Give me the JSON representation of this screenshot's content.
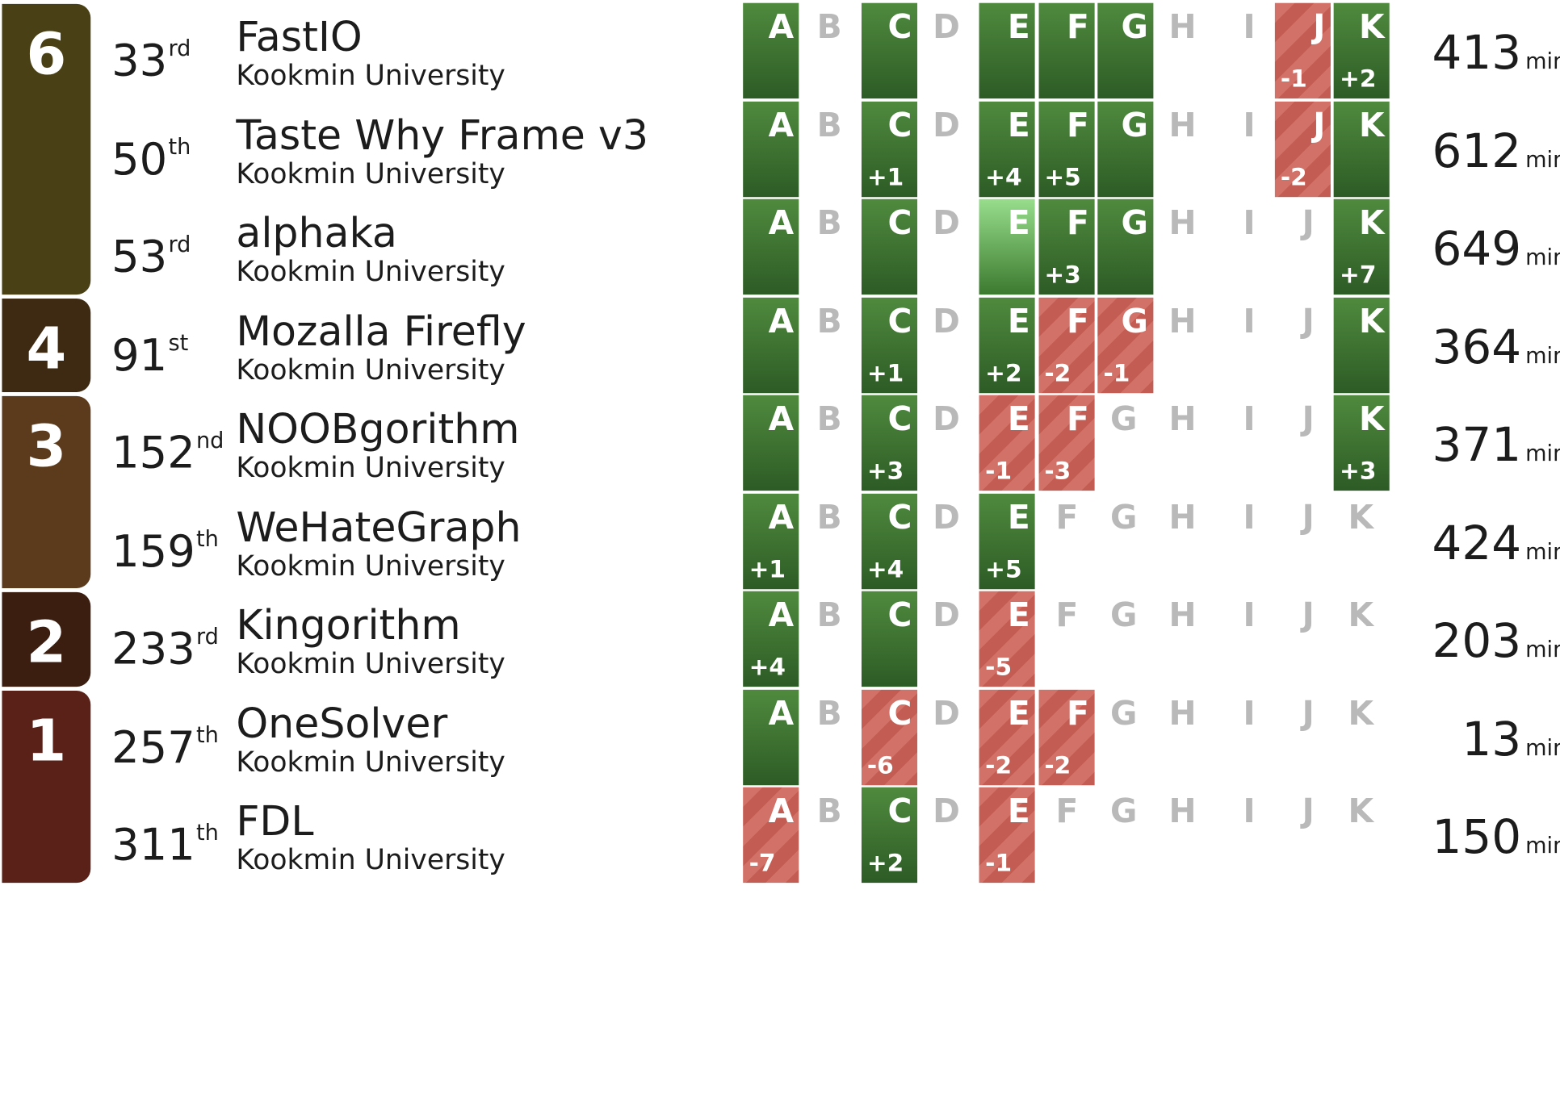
{
  "colors": {
    "group_6": "#4a4016",
    "group_4": "#3e2a12",
    "group_3": "#5c3a1c",
    "group_2": "#3b1e10",
    "group_1": "#5a2119",
    "solved": "#2f5e27",
    "first_solve": "#8ed483",
    "failed": "#d06d63",
    "unattempted_letter": "#b9b9b9"
  },
  "groups": [
    {
      "count": "6",
      "color": "#4a4016",
      "rows": 3
    },
    {
      "count": "4",
      "color": "#3e2a12",
      "rows": 1
    },
    {
      "count": "3",
      "color": "#5c3a1c",
      "rows": 2
    },
    {
      "count": "2",
      "color": "#3b1e10",
      "rows": 1
    },
    {
      "count": "1",
      "color": "#5a2119",
      "rows": 2
    }
  ],
  "penalty_unit": "min.",
  "teams": [
    {
      "rank": "33",
      "suffix": "rd",
      "name": "FastIO",
      "university": "Kookmin University",
      "penalty": "413",
      "problems": [
        {
          "letter": "A",
          "status": "solved",
          "attempts": ""
        },
        {
          "letter": "B",
          "status": "none",
          "attempts": ""
        },
        {
          "letter": "C",
          "status": "solved",
          "attempts": ""
        },
        {
          "letter": "D",
          "status": "none",
          "attempts": ""
        },
        {
          "letter": "E",
          "status": "solved",
          "attempts": ""
        },
        {
          "letter": "F",
          "status": "solved",
          "attempts": ""
        },
        {
          "letter": "G",
          "status": "solved",
          "attempts": ""
        },
        {
          "letter": "H",
          "status": "none",
          "attempts": ""
        },
        {
          "letter": "I",
          "status": "none",
          "attempts": ""
        },
        {
          "letter": "J",
          "status": "failed",
          "attempts": "-1"
        },
        {
          "letter": "K",
          "status": "solved",
          "attempts": "+2"
        }
      ]
    },
    {
      "rank": "50",
      "suffix": "th",
      "name": "Taste Why Frame v3",
      "university": "Kookmin University",
      "penalty": "612",
      "problems": [
        {
          "letter": "A",
          "status": "solved",
          "attempts": ""
        },
        {
          "letter": "B",
          "status": "none",
          "attempts": ""
        },
        {
          "letter": "C",
          "status": "solved",
          "attempts": "+1"
        },
        {
          "letter": "D",
          "status": "none",
          "attempts": ""
        },
        {
          "letter": "E",
          "status": "solved",
          "attempts": "+4"
        },
        {
          "letter": "F",
          "status": "solved",
          "attempts": "+5"
        },
        {
          "letter": "G",
          "status": "solved",
          "attempts": ""
        },
        {
          "letter": "H",
          "status": "none",
          "attempts": ""
        },
        {
          "letter": "I",
          "status": "none",
          "attempts": ""
        },
        {
          "letter": "J",
          "status": "failed",
          "attempts": "-2"
        },
        {
          "letter": "K",
          "status": "solved",
          "attempts": ""
        }
      ]
    },
    {
      "rank": "53",
      "suffix": "rd",
      "name": "alphaka",
      "university": "Kookmin University",
      "penalty": "649",
      "problems": [
        {
          "letter": "A",
          "status": "solved",
          "attempts": ""
        },
        {
          "letter": "B",
          "status": "none",
          "attempts": ""
        },
        {
          "letter": "C",
          "status": "solved",
          "attempts": ""
        },
        {
          "letter": "D",
          "status": "none",
          "attempts": ""
        },
        {
          "letter": "E",
          "status": "first",
          "attempts": ""
        },
        {
          "letter": "F",
          "status": "solved",
          "attempts": "+3"
        },
        {
          "letter": "G",
          "status": "solved",
          "attempts": ""
        },
        {
          "letter": "H",
          "status": "none",
          "attempts": ""
        },
        {
          "letter": "I",
          "status": "none",
          "attempts": ""
        },
        {
          "letter": "J",
          "status": "none",
          "attempts": ""
        },
        {
          "letter": "K",
          "status": "solved",
          "attempts": "+7"
        }
      ]
    },
    {
      "rank": "91",
      "suffix": "st",
      "name": "Mozalla Firefly",
      "university": "Kookmin University",
      "penalty": "364",
      "problems": [
        {
          "letter": "A",
          "status": "solved",
          "attempts": ""
        },
        {
          "letter": "B",
          "status": "none",
          "attempts": ""
        },
        {
          "letter": "C",
          "status": "solved",
          "attempts": "+1"
        },
        {
          "letter": "D",
          "status": "none",
          "attempts": ""
        },
        {
          "letter": "E",
          "status": "solved",
          "attempts": "+2"
        },
        {
          "letter": "F",
          "status": "failed",
          "attempts": "-2"
        },
        {
          "letter": "G",
          "status": "failed",
          "attempts": "-1"
        },
        {
          "letter": "H",
          "status": "none",
          "attempts": ""
        },
        {
          "letter": "I",
          "status": "none",
          "attempts": ""
        },
        {
          "letter": "J",
          "status": "none",
          "attempts": ""
        },
        {
          "letter": "K",
          "status": "solved",
          "attempts": ""
        }
      ]
    },
    {
      "rank": "152",
      "suffix": "nd",
      "name": "NOOBgorithm",
      "university": "Kookmin University",
      "penalty": "371",
      "problems": [
        {
          "letter": "A",
          "status": "solved",
          "attempts": ""
        },
        {
          "letter": "B",
          "status": "none",
          "attempts": ""
        },
        {
          "letter": "C",
          "status": "solved",
          "attempts": "+3"
        },
        {
          "letter": "D",
          "status": "none",
          "attempts": ""
        },
        {
          "letter": "E",
          "status": "failed",
          "attempts": "-1"
        },
        {
          "letter": "F",
          "status": "failed",
          "attempts": "-3"
        },
        {
          "letter": "G",
          "status": "none",
          "attempts": ""
        },
        {
          "letter": "H",
          "status": "none",
          "attempts": ""
        },
        {
          "letter": "I",
          "status": "none",
          "attempts": ""
        },
        {
          "letter": "J",
          "status": "none",
          "attempts": ""
        },
        {
          "letter": "K",
          "status": "solved",
          "attempts": "+3"
        }
      ]
    },
    {
      "rank": "159",
      "suffix": "th",
      "name": "WeHateGraph",
      "university": "Kookmin University",
      "penalty": "424",
      "problems": [
        {
          "letter": "A",
          "status": "solved",
          "attempts": "+1"
        },
        {
          "letter": "B",
          "status": "none",
          "attempts": ""
        },
        {
          "letter": "C",
          "status": "solved",
          "attempts": "+4"
        },
        {
          "letter": "D",
          "status": "none",
          "attempts": ""
        },
        {
          "letter": "E",
          "status": "solved",
          "attempts": "+5"
        },
        {
          "letter": "F",
          "status": "none",
          "attempts": ""
        },
        {
          "letter": "G",
          "status": "none",
          "attempts": ""
        },
        {
          "letter": "H",
          "status": "none",
          "attempts": ""
        },
        {
          "letter": "I",
          "status": "none",
          "attempts": ""
        },
        {
          "letter": "J",
          "status": "none",
          "attempts": ""
        },
        {
          "letter": "K",
          "status": "none",
          "attempts": ""
        }
      ]
    },
    {
      "rank": "233",
      "suffix": "rd",
      "name": "Kingorithm",
      "university": "Kookmin University",
      "penalty": "203",
      "problems": [
        {
          "letter": "A",
          "status": "solved",
          "attempts": "+4"
        },
        {
          "letter": "B",
          "status": "none",
          "attempts": ""
        },
        {
          "letter": "C",
          "status": "solved",
          "attempts": ""
        },
        {
          "letter": "D",
          "status": "none",
          "attempts": ""
        },
        {
          "letter": "E",
          "status": "failed",
          "attempts": "-5"
        },
        {
          "letter": "F",
          "status": "none",
          "attempts": ""
        },
        {
          "letter": "G",
          "status": "none",
          "attempts": ""
        },
        {
          "letter": "H",
          "status": "none",
          "attempts": ""
        },
        {
          "letter": "I",
          "status": "none",
          "attempts": ""
        },
        {
          "letter": "J",
          "status": "none",
          "attempts": ""
        },
        {
          "letter": "K",
          "status": "none",
          "attempts": ""
        }
      ]
    },
    {
      "rank": "257",
      "suffix": "th",
      "name": "OneSolver",
      "university": "Kookmin University",
      "penalty": "13",
      "problems": [
        {
          "letter": "A",
          "status": "solved",
          "attempts": ""
        },
        {
          "letter": "B",
          "status": "none",
          "attempts": ""
        },
        {
          "letter": "C",
          "status": "failed",
          "attempts": "-6"
        },
        {
          "letter": "D",
          "status": "none",
          "attempts": ""
        },
        {
          "letter": "E",
          "status": "failed",
          "attempts": "-2"
        },
        {
          "letter": "F",
          "status": "failed",
          "attempts": "-2"
        },
        {
          "letter": "G",
          "status": "none",
          "attempts": ""
        },
        {
          "letter": "H",
          "status": "none",
          "attempts": ""
        },
        {
          "letter": "I",
          "status": "none",
          "attempts": ""
        },
        {
          "letter": "J",
          "status": "none",
          "attempts": ""
        },
        {
          "letter": "K",
          "status": "none",
          "attempts": ""
        }
      ]
    },
    {
      "rank": "311",
      "suffix": "th",
      "name": "FDL",
      "university": "Kookmin University",
      "penalty": "150",
      "problems": [
        {
          "letter": "A",
          "status": "failed",
          "attempts": "-7"
        },
        {
          "letter": "B",
          "status": "none",
          "attempts": ""
        },
        {
          "letter": "C",
          "status": "solved",
          "attempts": "+2"
        },
        {
          "letter": "D",
          "status": "none",
          "attempts": ""
        },
        {
          "letter": "E",
          "status": "failed",
          "attempts": "-1"
        },
        {
          "letter": "F",
          "status": "none",
          "attempts": ""
        },
        {
          "letter": "G",
          "status": "none",
          "attempts": ""
        },
        {
          "letter": "H",
          "status": "none",
          "attempts": ""
        },
        {
          "letter": "I",
          "status": "none",
          "attempts": ""
        },
        {
          "letter": "J",
          "status": "none",
          "attempts": ""
        },
        {
          "letter": "K",
          "status": "none",
          "attempts": ""
        }
      ]
    }
  ]
}
